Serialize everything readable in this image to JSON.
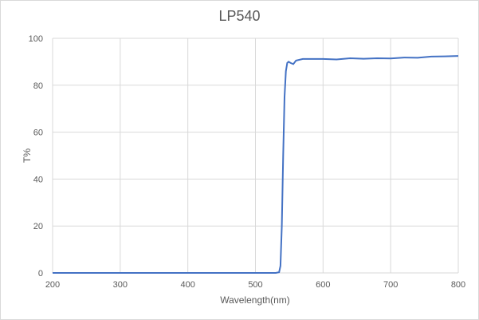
{
  "chart_data": {
    "type": "line",
    "title": "LP540",
    "xlabel": "Wavelength(nm)",
    "ylabel": "T%",
    "xlim": [
      200,
      800
    ],
    "ylim": [
      0,
      100
    ],
    "xticks": [
      200,
      300,
      400,
      500,
      600,
      700,
      800
    ],
    "yticks": [
      0,
      20,
      40,
      60,
      80,
      100
    ],
    "grid": true,
    "legend": null,
    "series": [
      {
        "name": "LP540",
        "color": "#4472c4",
        "x": [
          200,
          300,
          400,
          500,
          530,
          535,
          537,
          539,
          541,
          543,
          545,
          547,
          549,
          552,
          556,
          560,
          570,
          580,
          600,
          620,
          640,
          660,
          680,
          700,
          720,
          740,
          760,
          780,
          800
        ],
        "y": [
          0,
          0,
          0,
          0,
          0,
          0.3,
          3,
          20,
          50,
          75,
          86,
          89.5,
          90,
          89.5,
          89,
          90.5,
          91.2,
          91.2,
          91.2,
          91,
          91.5,
          91.3,
          91.5,
          91.4,
          91.8,
          91.7,
          92.2,
          92.3,
          92.5
        ]
      }
    ]
  }
}
